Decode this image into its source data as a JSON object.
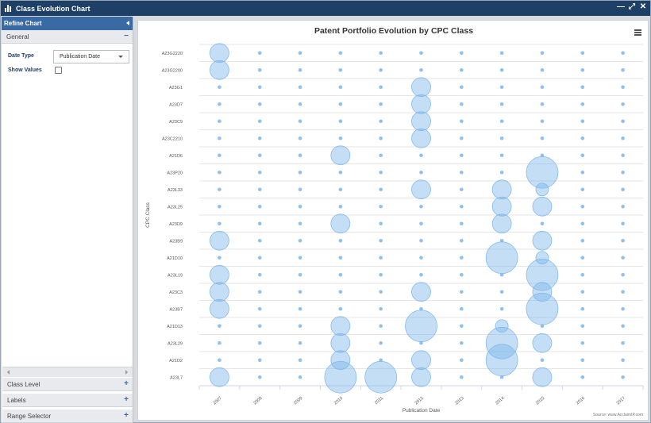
{
  "window": {
    "title": "Class Evolution Chart",
    "controls": [
      "—",
      "⤢",
      "✕"
    ]
  },
  "sidebar": {
    "header": "Refine Chart",
    "general_label": "General",
    "general_ctrl": "−",
    "date_type_label": "Date Type",
    "date_type_value": "Publication Date",
    "show_values_label": "Show Values",
    "sections": [
      {
        "label": "Class Level",
        "ctrl": "+"
      },
      {
        "label": "Labels",
        "ctrl": "+"
      },
      {
        "label": "Range Selector",
        "ctrl": "+"
      }
    ]
  },
  "chart": {
    "credits": "Source: www.AcclaimIP.com"
  },
  "chart_data": {
    "type": "bubble",
    "title": "Patent Portfolio Evolution by CPC Class",
    "xlabel": "Publication Date",
    "ylabel": "CPC Class",
    "x": [
      "2007",
      "2008",
      "2009",
      "2010",
      "2011",
      "2012",
      "2013",
      "2014",
      "2015",
      "2016",
      "2017"
    ],
    "y": [
      "A23G2220",
      "A23G2200",
      "A23G1",
      "A23D7",
      "A23C9",
      "A23C2210",
      "A21D6",
      "A23P20",
      "A23L33",
      "A23L25",
      "A23D9",
      "A23B9",
      "A21D10",
      "A23L19",
      "A23C3",
      "A23B7",
      "A21D13",
      "A23L29",
      "A21D2",
      "A23L7"
    ],
    "grid": true,
    "legend": "none",
    "values": [
      [
        2,
        0,
        0,
        0,
        0,
        0,
        0,
        0,
        0,
        0,
        0
      ],
      [
        2,
        0,
        0,
        0,
        0,
        0,
        0,
        0,
        0,
        0,
        0
      ],
      [
        0,
        0,
        0,
        0,
        0,
        2,
        0,
        0,
        0,
        0,
        0
      ],
      [
        0,
        0,
        0,
        0,
        0,
        2,
        0,
        0,
        0,
        0,
        0
      ],
      [
        0,
        0,
        0,
        0,
        0,
        2,
        0,
        0,
        0,
        0,
        0
      ],
      [
        0,
        0,
        0,
        0,
        0,
        2,
        0,
        0,
        0,
        0,
        0
      ],
      [
        0,
        0,
        0,
        2,
        0,
        0,
        0,
        0,
        0,
        0,
        0
      ],
      [
        0,
        0,
        0,
        0,
        0,
        0,
        0,
        0,
        4,
        0,
        0
      ],
      [
        0,
        0,
        0,
        0,
        0,
        2,
        0,
        2,
        1,
        0,
        0
      ],
      [
        0,
        0,
        0,
        0,
        0,
        0,
        0,
        2,
        2,
        0,
        0
      ],
      [
        0,
        0,
        0,
        2,
        0,
        0,
        0,
        2,
        0,
        0,
        0
      ],
      [
        2,
        0,
        0,
        0,
        0,
        0,
        0,
        0,
        2,
        0,
        0
      ],
      [
        0,
        0,
        0,
        0,
        0,
        0,
        0,
        4,
        1,
        0,
        0
      ],
      [
        2,
        0,
        0,
        0,
        0,
        0,
        0,
        0,
        4,
        0,
        0
      ],
      [
        2,
        0,
        0,
        0,
        0,
        2,
        0,
        0,
        2,
        0,
        0
      ],
      [
        2,
        0,
        0,
        0,
        0,
        0,
        0,
        0,
        4,
        0,
        0
      ],
      [
        0,
        0,
        0,
        2,
        0,
        4,
        0,
        1,
        0,
        0,
        0
      ],
      [
        0,
        0,
        0,
        2,
        0,
        0,
        0,
        4,
        2,
        0,
        0
      ],
      [
        0,
        0,
        0,
        2,
        0,
        2,
        0,
        4,
        0,
        0,
        0
      ],
      [
        2,
        0,
        0,
        4,
        4,
        2,
        0,
        0,
        2,
        0,
        0
      ]
    ],
    "value_note": "relative bubble size; 0 = minimal marker"
  }
}
